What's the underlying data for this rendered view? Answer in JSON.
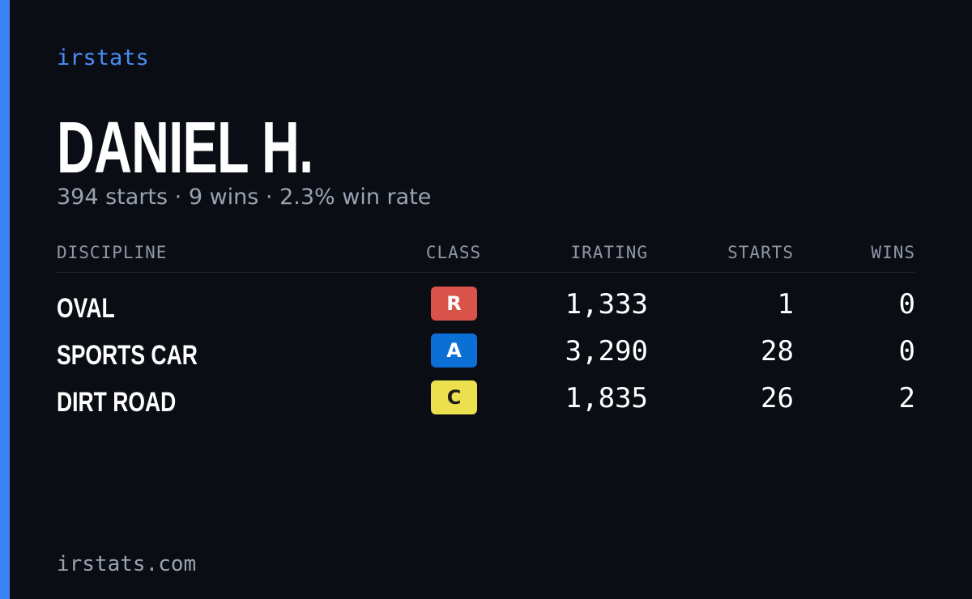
{
  "brand": "irstats",
  "name": "DANIEL H.",
  "subtitle": "394 starts · 9 wins · 2.3% win rate",
  "table": {
    "headers": [
      "DISCIPLINE",
      "CLASS",
      "IRATING",
      "STARTS",
      "WINS"
    ],
    "rows": [
      {
        "discipline": "OVAL",
        "class": "R",
        "class_color": "#d9534b",
        "irating": "1,333",
        "starts": "1",
        "wins": "0"
      },
      {
        "discipline": "SPORTS CAR",
        "class": "A",
        "class_color": "#0b6fd6",
        "irating": "3,290",
        "starts": "28",
        "wins": "0"
      },
      {
        "discipline": "DIRT ROAD",
        "class": "C",
        "class_color": "#ece04e",
        "irating": "1,835",
        "starts": "26",
        "wins": "2"
      }
    ]
  },
  "footer": "irstats.com"
}
